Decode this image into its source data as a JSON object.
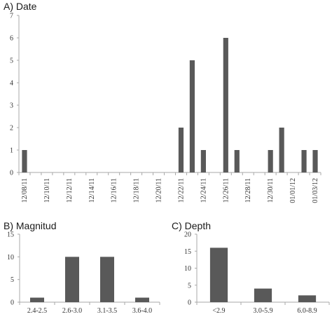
{
  "chart_data": [
    {
      "id": "date",
      "type": "bar",
      "title": "A) Date",
      "ylim": [
        0,
        7
      ],
      "yticks": [
        0,
        1,
        2,
        3,
        4,
        5,
        6,
        7
      ],
      "grid": false,
      "x_tick_labels": [
        "12/08/11",
        "12/10/11",
        "12/12/11",
        "12/14/11",
        "12/16/11",
        "12/18/11",
        "12/20/11",
        "12/22/11",
        "12/24/11",
        "12/26/11",
        "12/28/11",
        "12/30/11",
        "01/01/12",
        "01/03/12"
      ],
      "categories": [
        "12/08/11",
        "12/09/11",
        "12/10/11",
        "12/11/11",
        "12/12/11",
        "12/13/11",
        "12/14/11",
        "12/15/11",
        "12/16/11",
        "12/17/11",
        "12/18/11",
        "12/19/11",
        "12/20/11",
        "12/21/11",
        "12/22/11",
        "12/23/11",
        "12/24/11",
        "12/25/11",
        "12/26/11",
        "12/27/11",
        "12/28/11",
        "12/29/11",
        "12/30/11",
        "12/31/11",
        "01/01/12",
        "01/02/12",
        "01/03/12"
      ],
      "values": [
        1,
        0,
        0,
        0,
        0,
        0,
        0,
        0,
        0,
        0,
        0,
        0,
        0,
        0,
        2,
        5,
        1,
        0,
        6,
        1,
        0,
        0,
        1,
        2,
        0,
        1,
        1
      ],
      "bar_color": "#595959"
    },
    {
      "id": "magnitud",
      "type": "bar",
      "title": "B) Magnitud",
      "ylim": [
        0,
        15
      ],
      "yticks": [
        0,
        5,
        10,
        15
      ],
      "grid": false,
      "categories": [
        "2.4-2.5",
        "2.6-3.0",
        "3.1-3.5",
        "3.6-4.0"
      ],
      "values": [
        1,
        10,
        10,
        1
      ],
      "bar_color": "#595959"
    },
    {
      "id": "depth",
      "type": "bar",
      "title": "C) Depth",
      "ylim": [
        0,
        20
      ],
      "yticks": [
        0,
        5,
        10,
        15,
        20
      ],
      "grid": false,
      "categories": [
        "<2.9",
        "3.0-5.9",
        "6.0-8.9"
      ],
      "values": [
        16,
        4,
        2
      ],
      "bar_color": "#595959"
    }
  ]
}
